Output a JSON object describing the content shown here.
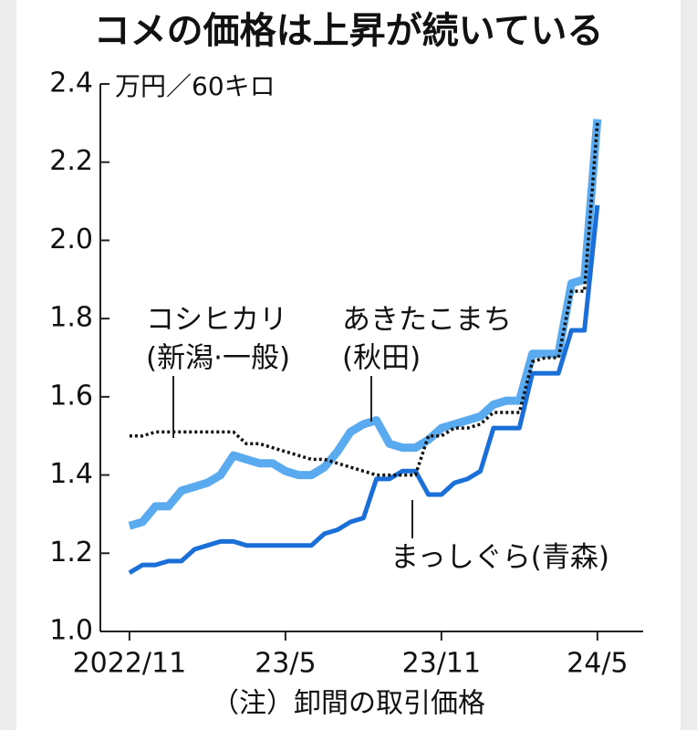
{
  "chart_data": {
    "type": "line",
    "title": "コメの価格は上昇が続いている",
    "unit": "万円／60キロ",
    "note": "（注）卸間の取引価格",
    "x": [
      2022.8333,
      2022.875,
      2022.9167,
      2022.9583,
      2023.0,
      2023.0417,
      2023.0833,
      2023.125,
      2023.1667,
      2023.2083,
      2023.25,
      2023.2917,
      2023.3333,
      2023.375,
      2023.4167,
      2023.4583,
      2023.5,
      2023.5417,
      2023.5833,
      2023.625,
      2023.6667,
      2023.7083,
      2023.75,
      2023.7917,
      2023.8333,
      2023.875,
      2023.9167,
      2023.9583,
      2024.0,
      2024.0417,
      2024.0833,
      2024.125,
      2024.1667,
      2024.2083,
      2024.25,
      2024.2917,
      2024.3333
    ],
    "xlim": [
      2022.74,
      2024.48
    ],
    "xticks": [
      {
        "value": 2022.8333,
        "label": "2022/11"
      },
      {
        "value": 2023.3333,
        "label": "23/5"
      },
      {
        "value": 2023.8333,
        "label": "23/11"
      },
      {
        "value": 2024.3333,
        "label": "24/5"
      }
    ],
    "ylim": [
      1.0,
      2.4
    ],
    "yticks": [
      {
        "value": 1,
        "label": "1.0"
      },
      1.2,
      1.4,
      1.6,
      1.8,
      {
        "value": 2,
        "label": "2.0"
      },
      2.2,
      2.4
    ],
    "series": [
      {
        "name": "あきたこまち",
        "region": "(秋田)",
        "color": "#5aaaf0",
        "values": [
          1.27,
          1.28,
          1.32,
          1.32,
          1.36,
          1.37,
          1.38,
          1.4,
          1.45,
          1.44,
          1.43,
          1.43,
          1.41,
          1.4,
          1.4,
          1.42,
          1.46,
          1.51,
          1.53,
          1.54,
          1.48,
          1.47,
          1.47,
          1.49,
          1.52,
          1.53,
          1.54,
          1.55,
          1.58,
          1.59,
          1.59,
          1.71,
          1.71,
          1.71,
          1.89,
          1.9,
          2.31
        ]
      },
      {
        "name": "まっしぐら",
        "region": "(青森)",
        "color": "#1a6fd8",
        "values": [
          1.15,
          1.17,
          1.17,
          1.18,
          1.18,
          1.21,
          1.22,
          1.23,
          1.23,
          1.22,
          1.22,
          1.22,
          1.22,
          1.22,
          1.22,
          1.25,
          1.26,
          1.28,
          1.29,
          1.39,
          1.39,
          1.41,
          1.41,
          1.35,
          1.35,
          1.38,
          1.39,
          1.41,
          1.52,
          1.52,
          1.52,
          1.66,
          1.66,
          1.66,
          1.77,
          1.77,
          2.09
        ]
      },
      {
        "name": "コシヒカリ",
        "region": "(新潟·一般)",
        "color": "#111111",
        "values": [
          1.5,
          1.5,
          1.51,
          1.51,
          1.51,
          1.51,
          1.51,
          1.51,
          1.51,
          1.48,
          1.48,
          1.47,
          1.46,
          1.45,
          1.44,
          1.44,
          1.43,
          1.42,
          1.41,
          1.4,
          1.4,
          1.4,
          1.4,
          1.5,
          1.5,
          1.52,
          1.52,
          1.53,
          1.56,
          1.56,
          1.56,
          1.69,
          1.7,
          1.7,
          1.87,
          1.87,
          2.3
        ]
      }
    ]
  }
}
